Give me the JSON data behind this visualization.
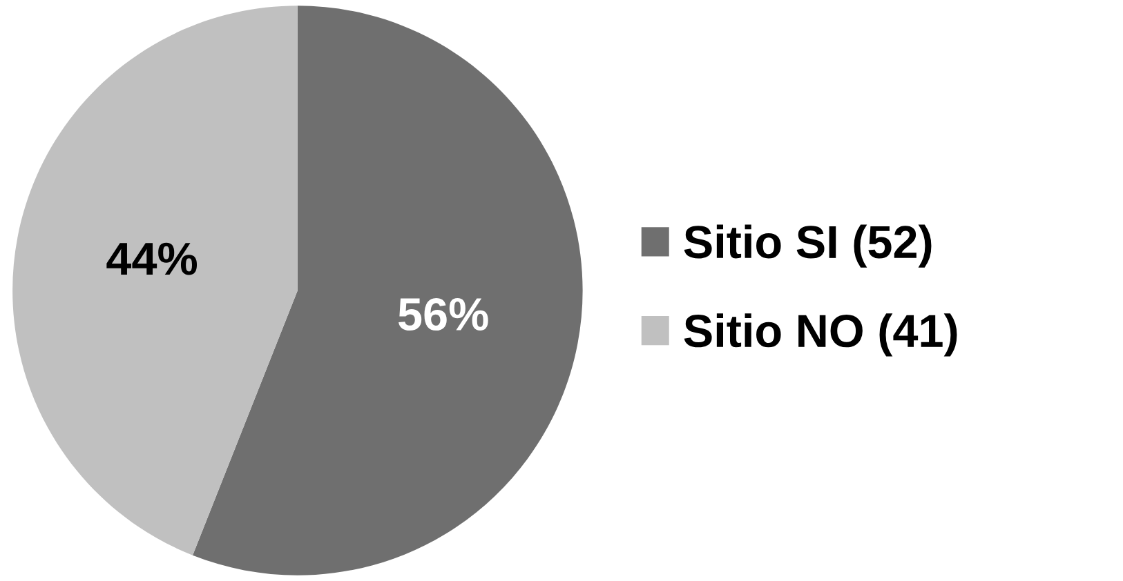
{
  "chart_data": {
    "type": "pie",
    "categories": [
      "Sitio SI (52)",
      "Sitio NO (41)"
    ],
    "values": [
      56,
      44
    ],
    "colors": [
      "#6f6f6f",
      "#c0c0c0"
    ],
    "value_labels": [
      "56%",
      "44%"
    ],
    "legend": "right"
  }
}
